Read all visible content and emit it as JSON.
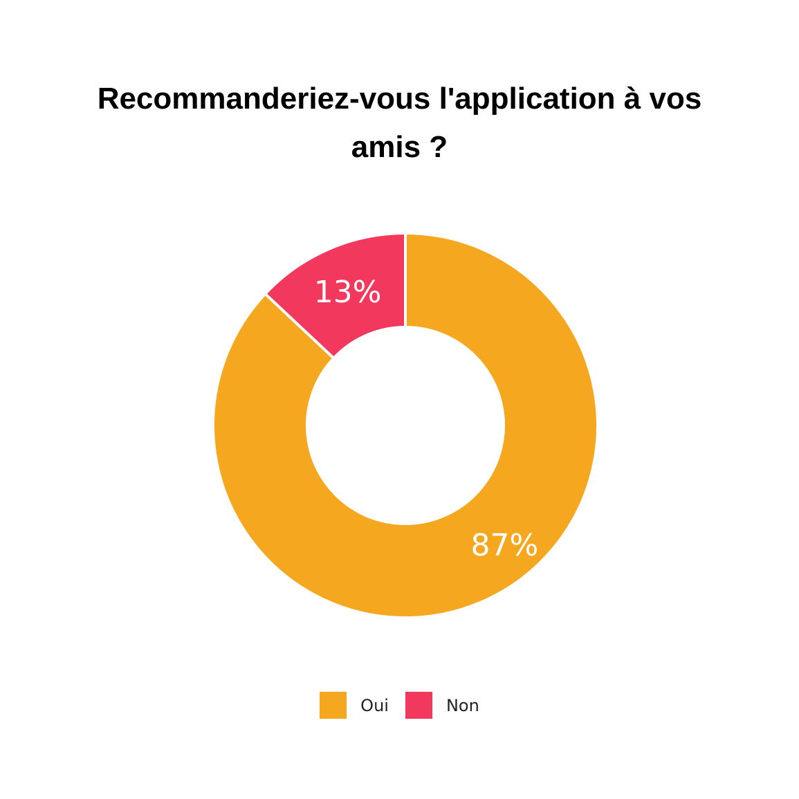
{
  "chart_data": {
    "type": "pie",
    "title": "Recommanderiez-vous l'application à vos amis ?",
    "categories": [
      "Oui",
      "Non"
    ],
    "values": [
      87,
      13
    ],
    "value_labels": [
      "87%",
      "13%"
    ],
    "colors": [
      "#F5A81F",
      "#F2385D"
    ],
    "donut": true,
    "legend_position": "bottom-center"
  }
}
